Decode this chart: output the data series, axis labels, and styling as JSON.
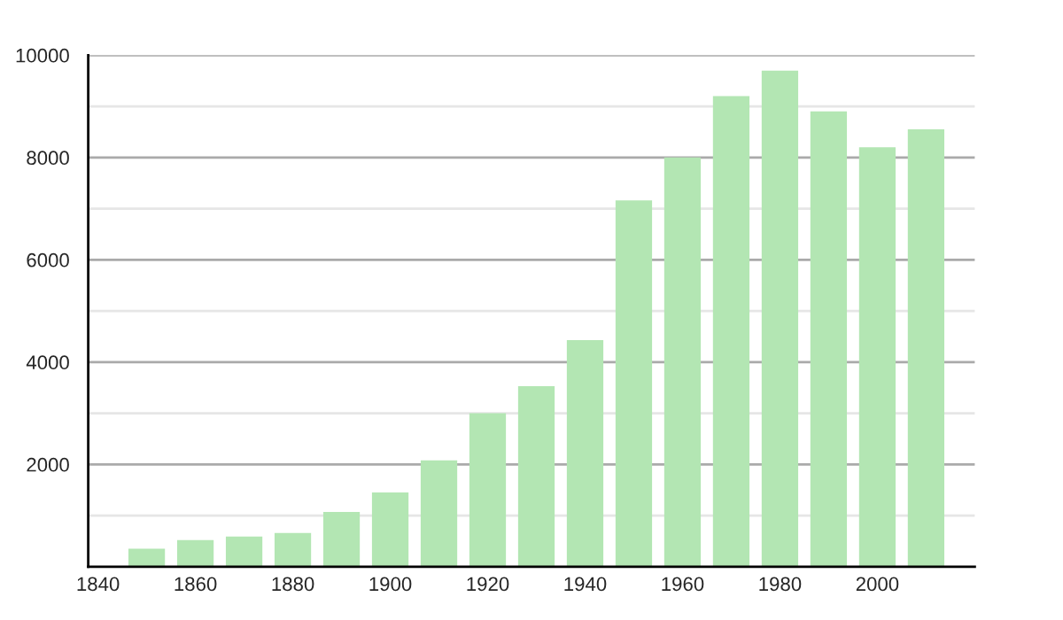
{
  "chart_data": {
    "type": "bar",
    "x": [
      1850,
      1860,
      1870,
      1880,
      1890,
      1900,
      1910,
      1920,
      1930,
      1940,
      1950,
      1960,
      1970,
      1980,
      1990,
      2000,
      2010
    ],
    "values": [
      350,
      520,
      590,
      660,
      1070,
      1450,
      2080,
      3000,
      3530,
      4430,
      7160,
      8000,
      9200,
      9700,
      8900,
      8200,
      8550
    ],
    "color": "#b3e6b3",
    "xlim": [
      1838,
      2020
    ],
    "xticks": [
      1840,
      1860,
      1880,
      1900,
      1920,
      1940,
      1960,
      1980,
      2000
    ],
    "ylim": [
      0,
      10000
    ],
    "yticks": [
      {
        "value": 1000,
        "label": null
      },
      2000,
      {
        "value": 3000,
        "label": null
      },
      4000,
      {
        "value": 5000,
        "label": null
      },
      6000,
      {
        "value": 7000,
        "label": null
      },
      8000,
      {
        "value": 9000,
        "label": null
      },
      10000
    ],
    "grid": "y"
  }
}
